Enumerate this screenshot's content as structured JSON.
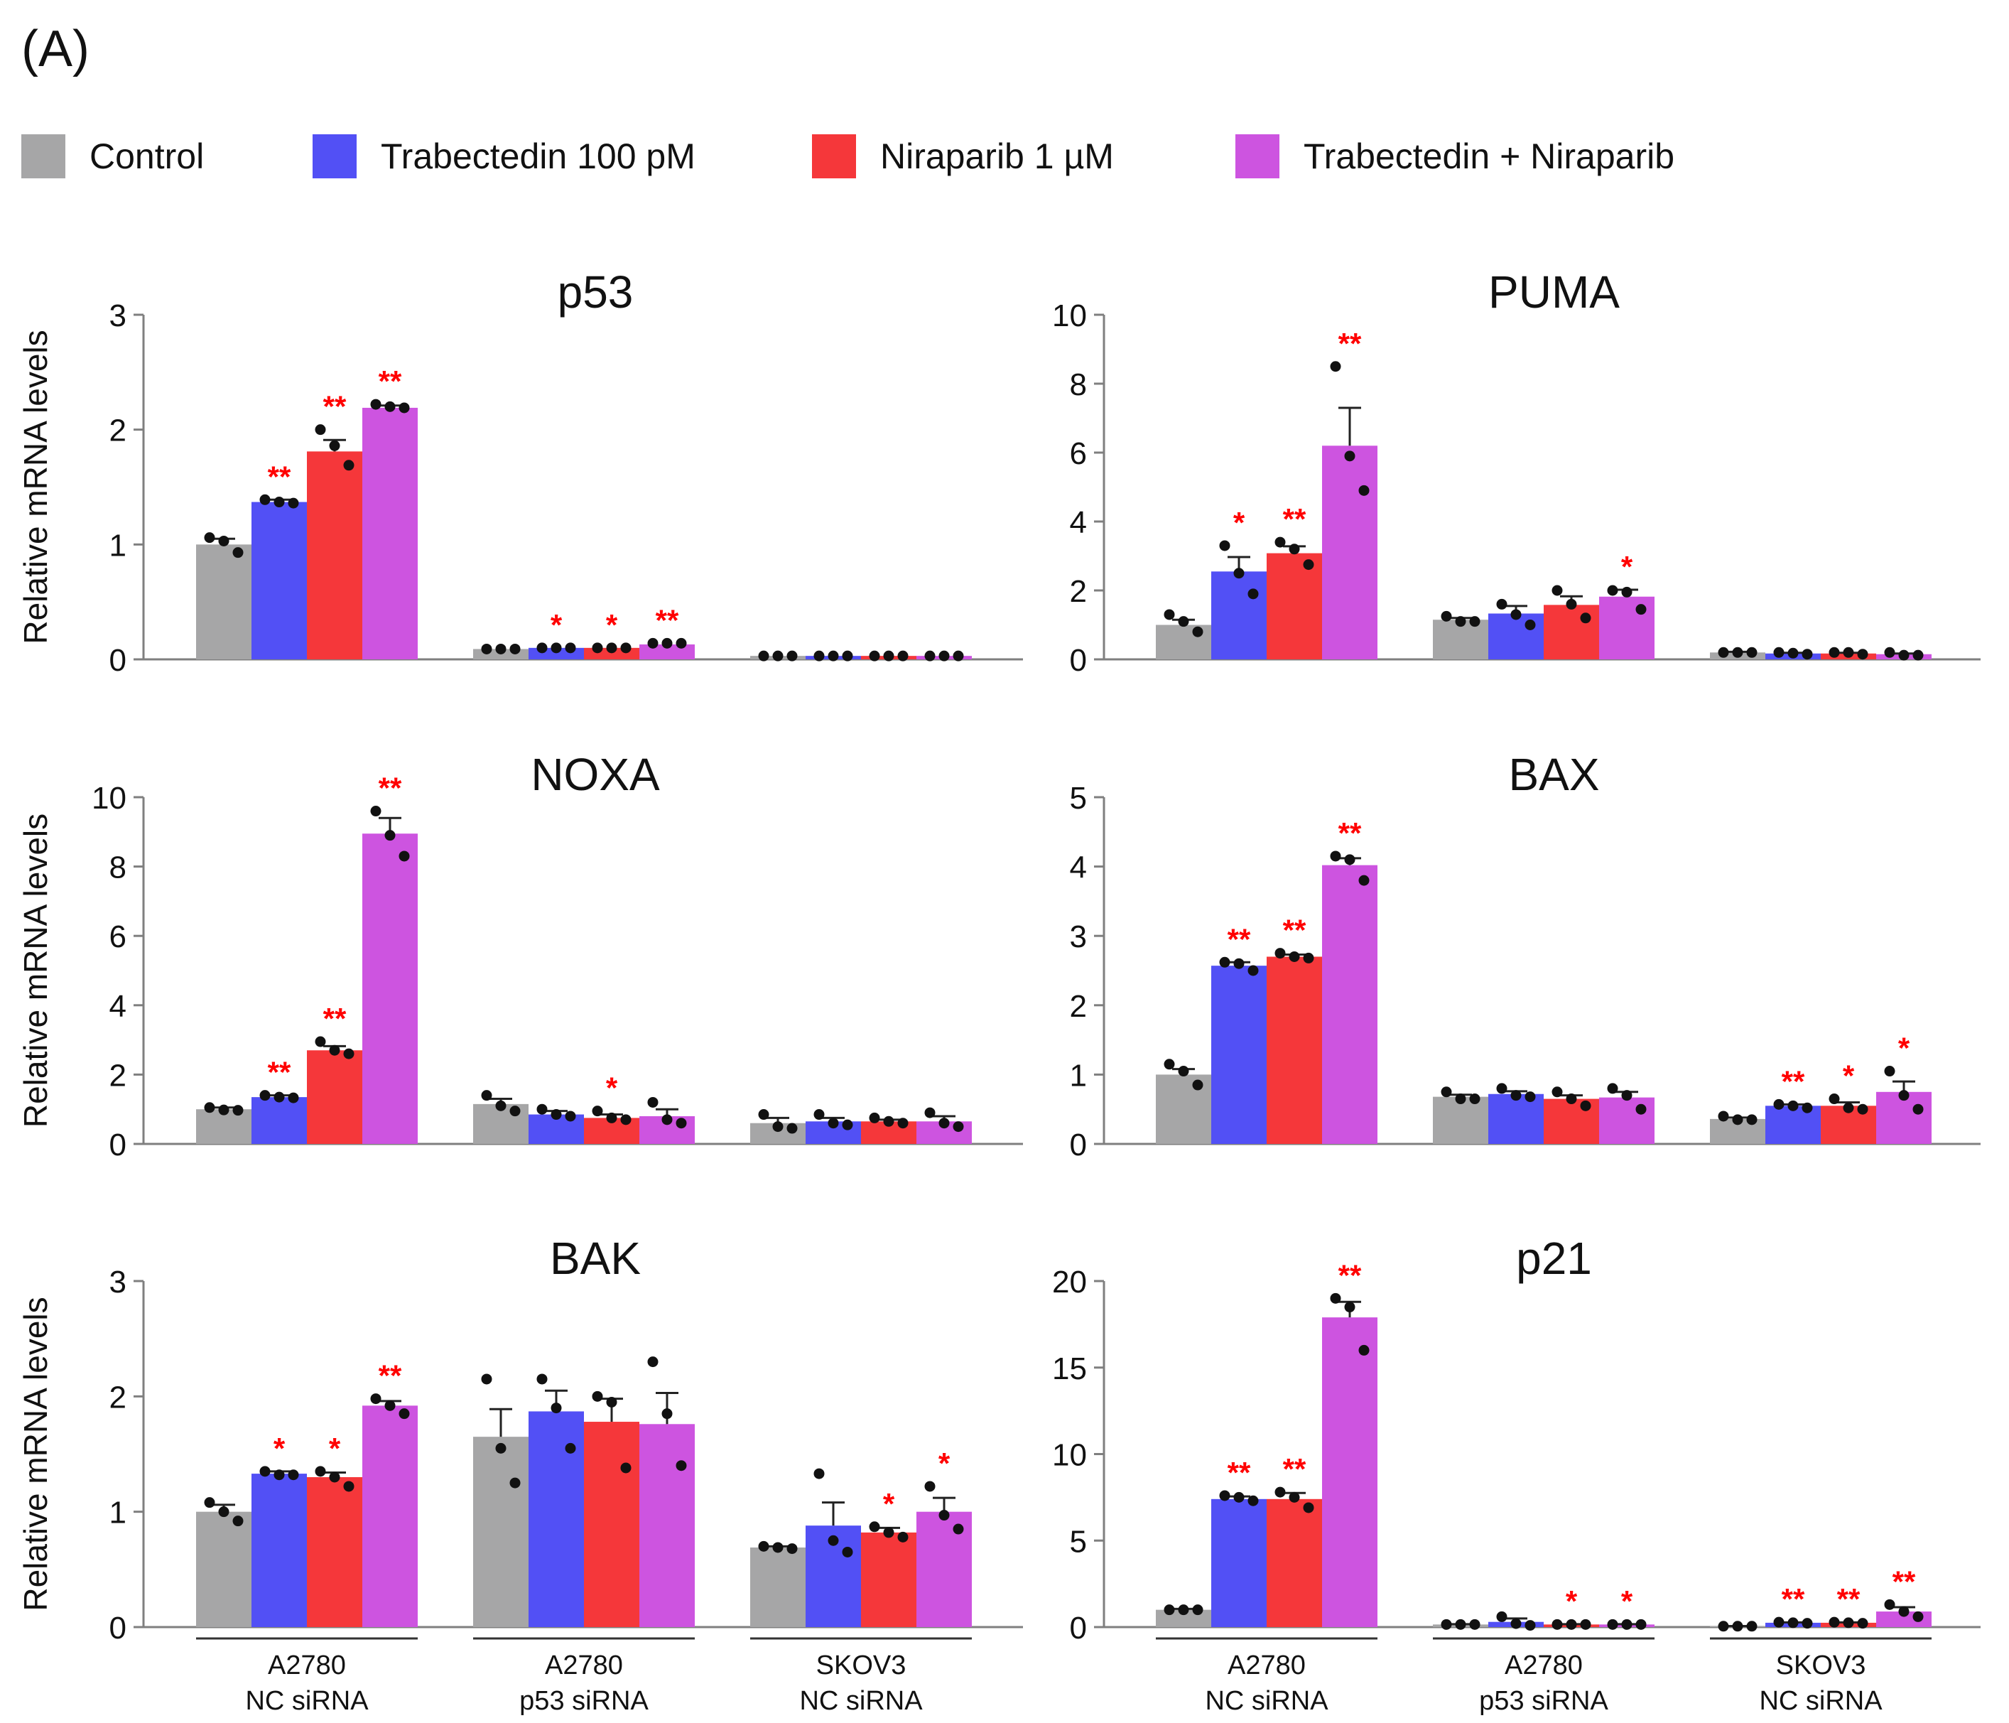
{
  "panel_label": "(A)",
  "colors": {
    "control": "#a6a6a7",
    "trabectedin": "#5250f5",
    "niraparib": "#f5373a",
    "combo": "#cd54e0",
    "significance": "#ff0000",
    "axis": "#7f7f7f"
  },
  "legend": [
    {
      "label": "Control",
      "color": "#a6a6a7"
    },
    {
      "label": "Trabectedin 100 pM",
      "color": "#5250f5"
    },
    {
      "label": "Niraparib 1 µM",
      "color": "#f5373a"
    },
    {
      "label": "Trabectedin + Niraparib",
      "color": "#cd54e0"
    }
  ],
  "chart_data": [
    {
      "type": "bar",
      "title": "p53",
      "ylabel": "Relative mRNA levels",
      "ylim": [
        0,
        3
      ],
      "yticks": [
        0,
        1,
        2,
        3
      ],
      "categories": [
        "A2780\nNC siRNA",
        "A2780\np53 siRNA",
        "SKOV3\nNC siRNA"
      ],
      "series": [
        {
          "name": "Control",
          "values": [
            1.0,
            0.09,
            0.03
          ],
          "errors": [
            0.05,
            0.0,
            0.0
          ],
          "points": [
            [
              1.06,
              1.03,
              0.93
            ],
            [
              0.09,
              0.09,
              0.09
            ],
            [
              0.03,
              0.03,
              0.03
            ]
          ],
          "significance": [
            "",
            "",
            ""
          ]
        },
        {
          "name": "Trabectedin 100 pM",
          "values": [
            1.37,
            0.1,
            0.03
          ],
          "errors": [
            0.02,
            0.0,
            0.0
          ],
          "points": [
            [
              1.39,
              1.37,
              1.36
            ],
            [
              0.1,
              0.1,
              0.1
            ],
            [
              0.03,
              0.03,
              0.03
            ]
          ],
          "significance": [
            "**",
            "*",
            ""
          ]
        },
        {
          "name": "Niraparib 1 µM",
          "values": [
            1.81,
            0.1,
            0.03
          ],
          "errors": [
            0.1,
            0.0,
            0.0
          ],
          "points": [
            [
              2.0,
              1.86,
              1.69
            ],
            [
              0.1,
              0.1,
              0.1
            ],
            [
              0.03,
              0.03,
              0.03
            ]
          ],
          "significance": [
            "**",
            "*",
            ""
          ]
        },
        {
          "name": "Trabectedin + Niraparib",
          "values": [
            2.19,
            0.13,
            0.03
          ],
          "errors": [
            0.02,
            0.0,
            0.0
          ],
          "points": [
            [
              2.22,
              2.2,
              2.19
            ],
            [
              0.14,
              0.14,
              0.14
            ],
            [
              0.03,
              0.03,
              0.03
            ]
          ],
          "significance": [
            "**",
            "**",
            ""
          ]
        }
      ]
    },
    {
      "type": "bar",
      "title": "PUMA",
      "ylabel": "",
      "ylim": [
        0,
        10
      ],
      "yticks": [
        0,
        2,
        4,
        6,
        8,
        10
      ],
      "categories": [
        "A2780\nNC siRNA",
        "A2780\np53 siRNA",
        "SKOV3\nNC siRNA"
      ],
      "series": [
        {
          "name": "Control",
          "values": [
            1.0,
            1.15,
            0.2
          ],
          "errors": [
            0.15,
            0.05,
            0.02
          ],
          "points": [
            [
              1.3,
              1.1,
              0.8
            ],
            [
              1.25,
              1.1,
              1.1
            ],
            [
              0.2,
              0.2,
              0.2
            ]
          ],
          "significance": [
            "",
            "",
            ""
          ]
        },
        {
          "name": "Trabectedin 100 pM",
          "values": [
            2.55,
            1.33,
            0.17
          ],
          "errors": [
            0.42,
            0.22,
            0.02
          ],
          "points": [
            [
              3.3,
              2.5,
              1.9
            ],
            [
              1.6,
              1.3,
              1.0
            ],
            [
              0.2,
              0.18,
              0.15
            ]
          ],
          "significance": [
            "*",
            "",
            ""
          ]
        },
        {
          "name": "Niraparib 1 µM",
          "values": [
            3.08,
            1.58,
            0.17
          ],
          "errors": [
            0.2,
            0.25,
            0.02
          ],
          "points": [
            [
              3.4,
              3.2,
              2.75
            ],
            [
              2.0,
              1.6,
              1.2
            ],
            [
              0.2,
              0.2,
              0.15
            ]
          ],
          "significance": [
            "**",
            "",
            ""
          ]
        },
        {
          "name": "Trabectedin + Niraparib",
          "values": [
            6.2,
            1.82,
            0.15
          ],
          "errors": [
            1.1,
            0.2,
            0.02
          ],
          "points": [
            [
              8.5,
              5.9,
              4.9
            ],
            [
              2.0,
              1.95,
              1.45
            ],
            [
              0.2,
              0.12,
              0.12
            ]
          ],
          "significance": [
            "**",
            "*",
            ""
          ]
        }
      ]
    },
    {
      "type": "bar",
      "title": "NOXA",
      "ylabel": "Relative mRNA levels",
      "ylim": [
        0,
        10
      ],
      "yticks": [
        0,
        2,
        4,
        6,
        8,
        10
      ],
      "categories": [
        "A2780\nNC siRNA",
        "A2780\np53 siRNA",
        "SKOV3\nNC siRNA"
      ],
      "series": [
        {
          "name": "Control",
          "values": [
            1.0,
            1.15,
            0.6
          ],
          "errors": [
            0.05,
            0.15,
            0.15
          ],
          "points": [
            [
              1.05,
              0.98,
              0.97
            ],
            [
              1.4,
              1.1,
              0.95
            ],
            [
              0.85,
              0.5,
              0.45
            ]
          ],
          "significance": [
            "",
            "",
            ""
          ]
        },
        {
          "name": "Trabectedin 100 pM",
          "values": [
            1.35,
            0.85,
            0.65
          ],
          "errors": [
            0.05,
            0.1,
            0.1
          ],
          "points": [
            [
              1.4,
              1.35,
              1.33
            ],
            [
              1.0,
              0.85,
              0.8
            ],
            [
              0.85,
              0.6,
              0.55
            ]
          ],
          "significance": [
            "**",
            "",
            ""
          ]
        },
        {
          "name": "Niraparib 1 µM",
          "values": [
            2.7,
            0.75,
            0.65
          ],
          "errors": [
            0.12,
            0.1,
            0.05
          ],
          "points": [
            [
              2.95,
              2.7,
              2.6
            ],
            [
              0.95,
              0.75,
              0.7
            ],
            [
              0.75,
              0.65,
              0.6
            ]
          ],
          "significance": [
            "**",
            "*",
            ""
          ]
        },
        {
          "name": "Trabectedin + Niraparib",
          "values": [
            8.95,
            0.8,
            0.65
          ],
          "errors": [
            0.45,
            0.2,
            0.15
          ],
          "points": [
            [
              9.6,
              8.9,
              8.3
            ],
            [
              1.2,
              0.7,
              0.6
            ],
            [
              0.9,
              0.6,
              0.5
            ]
          ],
          "significance": [
            "**",
            "",
            ""
          ]
        }
      ]
    },
    {
      "type": "bar",
      "title": "BAX",
      "ylabel": "",
      "ylim": [
        0,
        5
      ],
      "yticks": [
        0,
        1,
        2,
        3,
        4,
        5
      ],
      "categories": [
        "A2780\nNC siRNA",
        "A2780\np53 siRNA",
        "SKOV3\nNC siRNA"
      ],
      "series": [
        {
          "name": "Control",
          "values": [
            1.0,
            0.68,
            0.36
          ],
          "errors": [
            0.08,
            0.03,
            0.02
          ],
          "points": [
            [
              1.15,
              1.05,
              0.85
            ],
            [
              0.75,
              0.65,
              0.65
            ],
            [
              0.4,
              0.35,
              0.35
            ]
          ],
          "significance": [
            "",
            "",
            ""
          ]
        },
        {
          "name": "Trabectedin 100 pM",
          "values": [
            2.57,
            0.72,
            0.55
          ],
          "errors": [
            0.05,
            0.04,
            0.02
          ],
          "points": [
            [
              2.62,
              2.6,
              2.5
            ],
            [
              0.8,
              0.7,
              0.68
            ],
            [
              0.57,
              0.55,
              0.52
            ]
          ],
          "significance": [
            "**",
            "",
            "**"
          ]
        },
        {
          "name": "Niraparib 1 µM",
          "values": [
            2.7,
            0.65,
            0.55
          ],
          "errors": [
            0.03,
            0.05,
            0.05
          ],
          "points": [
            [
              2.75,
              2.7,
              2.68
            ],
            [
              0.75,
              0.65,
              0.55
            ],
            [
              0.65,
              0.52,
              0.5
            ]
          ],
          "significance": [
            "**",
            "",
            "*"
          ]
        },
        {
          "name": "Trabectedin + Niraparib",
          "values": [
            4.02,
            0.67,
            0.75
          ],
          "errors": [
            0.1,
            0.08,
            0.15
          ],
          "points": [
            [
              4.15,
              4.1,
              3.8
            ],
            [
              0.8,
              0.7,
              0.5
            ],
            [
              1.05,
              0.7,
              0.5
            ]
          ],
          "significance": [
            "**",
            "",
            "*"
          ]
        }
      ]
    },
    {
      "type": "bar",
      "title": "BAK",
      "ylabel": "Relative mRNA levels",
      "ylim": [
        0,
        3
      ],
      "yticks": [
        0,
        1,
        2,
        3
      ],
      "categories": [
        "A2780\nNC siRNA",
        "A2780\np53 siRNA",
        "SKOV3\nNC siRNA"
      ],
      "series": [
        {
          "name": "Control",
          "values": [
            1.0,
            1.65,
            0.69
          ],
          "errors": [
            0.06,
            0.24,
            0.01
          ],
          "points": [
            [
              1.08,
              1.0,
              0.92
            ],
            [
              2.15,
              1.55,
              1.25
            ],
            [
              0.7,
              0.69,
              0.68
            ]
          ],
          "significance": [
            "",
            "",
            ""
          ]
        },
        {
          "name": "Trabectedin 100 pM",
          "values": [
            1.33,
            1.87,
            0.88
          ],
          "errors": [
            0.02,
            0.18,
            0.2
          ],
          "points": [
            [
              1.35,
              1.32,
              1.32
            ],
            [
              2.15,
              1.9,
              1.55
            ],
            [
              1.33,
              0.75,
              0.65
            ]
          ],
          "significance": [
            "*",
            "",
            ""
          ]
        },
        {
          "name": "Niraparib 1 µM",
          "values": [
            1.3,
            1.78,
            0.82
          ],
          "errors": [
            0.04,
            0.2,
            0.04
          ],
          "points": [
            [
              1.35,
              1.3,
              1.22
            ],
            [
              2.0,
              1.95,
              1.38
            ],
            [
              0.87,
              0.82,
              0.78
            ]
          ],
          "significance": [
            "*",
            "",
            "*"
          ]
        },
        {
          "name": "Trabectedin + Niraparib",
          "values": [
            1.92,
            1.76,
            1.0
          ],
          "errors": [
            0.04,
            0.27,
            0.12
          ],
          "points": [
            [
              1.98,
              1.92,
              1.85
            ],
            [
              2.3,
              1.85,
              1.4
            ],
            [
              1.22,
              0.97,
              0.85
            ]
          ],
          "significance": [
            "**",
            "",
            "*"
          ]
        }
      ]
    },
    {
      "type": "bar",
      "title": "p21",
      "ylabel": "",
      "ylim": [
        0,
        20
      ],
      "yticks": [
        0,
        5,
        10,
        15,
        20
      ],
      "categories": [
        "A2780\nNC siRNA",
        "A2780\np53 siRNA",
        "SKOV3\nNC siRNA"
      ],
      "series": [
        {
          "name": "Control",
          "values": [
            1.0,
            0.15,
            0.05
          ],
          "errors": [
            0.05,
            0.02,
            0.01
          ],
          "points": [
            [
              1.0,
              1.0,
              1.0
            ],
            [
              0.15,
              0.15,
              0.15
            ],
            [
              0.05,
              0.05,
              0.05
            ]
          ],
          "significance": [
            "",
            "",
            ""
          ]
        },
        {
          "name": "Trabectedin 100 pM",
          "values": [
            7.4,
            0.3,
            0.25
          ],
          "errors": [
            0.15,
            0.2,
            0.02
          ],
          "points": [
            [
              7.6,
              7.5,
              7.3
            ],
            [
              0.6,
              0.2,
              0.1
            ],
            [
              0.28,
              0.25,
              0.22
            ]
          ],
          "significance": [
            "**",
            "",
            "**"
          ]
        },
        {
          "name": "Niraparib 1 µM",
          "values": [
            7.4,
            0.15,
            0.25
          ],
          "errors": [
            0.35,
            0.02,
            0.02
          ],
          "points": [
            [
              7.8,
              7.5,
              6.9
            ],
            [
              0.15,
              0.15,
              0.15
            ],
            [
              0.28,
              0.25,
              0.22
            ]
          ],
          "significance": [
            "**",
            "*",
            "**"
          ]
        },
        {
          "name": "Trabectedin + Niraparib",
          "values": [
            17.9,
            0.15,
            0.9
          ],
          "errors": [
            0.9,
            0.02,
            0.25
          ],
          "points": [
            [
              19.0,
              18.5,
              16.0
            ],
            [
              0.15,
              0.15,
              0.15
            ],
            [
              1.3,
              0.9,
              0.6
            ]
          ],
          "significance": [
            "**",
            "*",
            "**"
          ]
        }
      ]
    }
  ]
}
